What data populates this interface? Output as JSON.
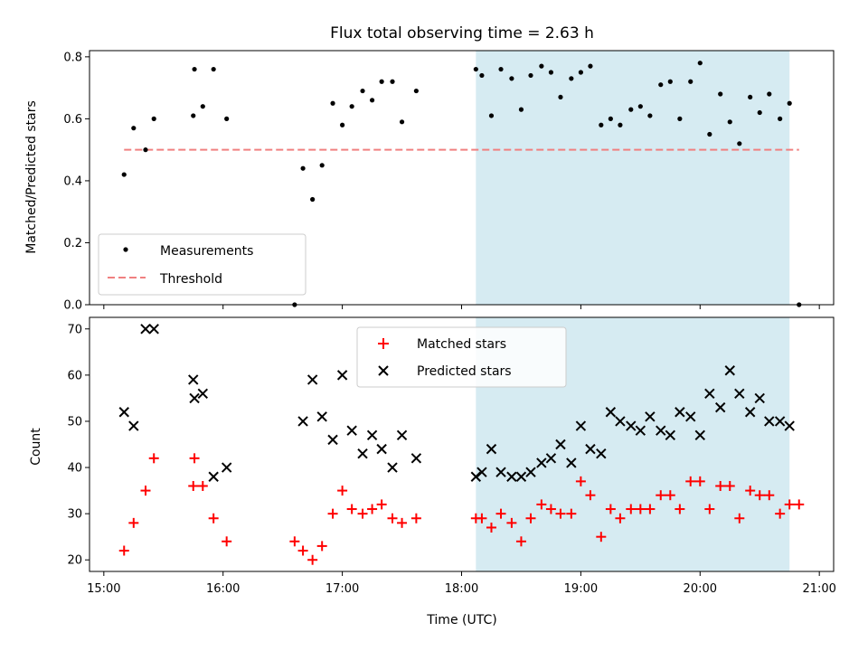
{
  "chart_data": [
    {
      "type": "scatter",
      "title": "Flux total observing time = 2.63 h",
      "xlabel": "",
      "ylabel": "Matched/Predicted stars",
      "xlim": [
        14.88,
        21.12
      ],
      "ylim": [
        0.0,
        0.82
      ],
      "yticks": [
        0.0,
        0.2,
        0.4,
        0.6,
        0.8
      ],
      "ytick_labels": [
        "0.0",
        "0.2",
        "0.4",
        "0.6",
        "0.8"
      ],
      "shaded_span": {
        "from": 18.12,
        "to": 20.75,
        "color": "#add8e6"
      },
      "threshold": {
        "name": "Threshold",
        "value": 0.5,
        "from": 15.17,
        "to": 20.83,
        "color": "#f08080"
      },
      "legend": {
        "placement": "lower-left",
        "entries": [
          "Measurements",
          "Threshold"
        ]
      },
      "series": [
        {
          "name": "Measurements",
          "marker": "dot",
          "color": "#000000",
          "x": [
            15.17,
            15.25,
            15.35,
            15.42,
            15.75,
            15.76,
            15.83,
            15.92,
            16.03,
            16.6,
            16.67,
            16.75,
            16.83,
            16.92,
            17.0,
            17.08,
            17.17,
            17.25,
            17.33,
            17.42,
            17.5,
            17.62,
            18.12,
            18.17,
            18.25,
            18.33,
            18.42,
            18.5,
            18.58,
            18.67,
            18.75,
            18.83,
            18.92,
            19.0,
            19.08,
            19.17,
            19.25,
            19.33,
            19.42,
            19.5,
            19.58,
            19.67,
            19.75,
            19.83,
            19.92,
            20.0,
            20.08,
            20.17,
            20.25,
            20.33,
            20.42,
            20.5,
            20.58,
            20.67,
            20.75,
            20.83
          ],
          "y": [
            0.42,
            0.57,
            0.5,
            0.6,
            0.61,
            0.76,
            0.64,
            0.76,
            0.6,
            0.0,
            0.44,
            0.34,
            0.45,
            0.65,
            0.58,
            0.64,
            0.69,
            0.66,
            0.72,
            0.72,
            0.59,
            0.69,
            0.76,
            0.74,
            0.61,
            0.76,
            0.73,
            0.63,
            0.74,
            0.77,
            0.75,
            0.67,
            0.73,
            0.75,
            0.77,
            0.58,
            0.6,
            0.58,
            0.63,
            0.64,
            0.61,
            0.71,
            0.72,
            0.6,
            0.72,
            0.78,
            0.55,
            0.68,
            0.59,
            0.52,
            0.67,
            0.62,
            0.68,
            0.6,
            0.65,
            0.0
          ]
        }
      ]
    },
    {
      "type": "scatter",
      "title": "",
      "xlabel": "Time (UTC)",
      "ylabel": "Count",
      "xlim": [
        14.88,
        21.12
      ],
      "ylim": [
        17.5,
        72.5
      ],
      "yticks": [
        20,
        30,
        40,
        50,
        60,
        70
      ],
      "ytick_labels": [
        "20",
        "30",
        "40",
        "50",
        "60",
        "70"
      ],
      "xticks": [
        15,
        16,
        17,
        18,
        19,
        20,
        21
      ],
      "xtick_labels": [
        "15:00",
        "16:00",
        "17:00",
        "18:00",
        "19:00",
        "20:00",
        "21:00"
      ],
      "shaded_span": {
        "from": 18.12,
        "to": 20.75,
        "color": "#add8e6"
      },
      "legend": {
        "placement": "upper-center",
        "entries": [
          "Matched stars",
          "Predicted stars"
        ]
      },
      "series": [
        {
          "name": "Matched stars",
          "marker": "plus",
          "color": "#ff0000",
          "x": [
            15.17,
            15.25,
            15.35,
            15.42,
            15.75,
            15.76,
            15.83,
            15.92,
            16.03,
            16.6,
            16.67,
            16.75,
            16.83,
            16.92,
            17.0,
            17.08,
            17.17,
            17.25,
            17.33,
            17.42,
            17.5,
            17.62,
            18.12,
            18.17,
            18.25,
            18.33,
            18.42,
            18.5,
            18.58,
            18.67,
            18.75,
            18.83,
            18.92,
            19.0,
            19.08,
            19.17,
            19.25,
            19.33,
            19.42,
            19.5,
            19.58,
            19.67,
            19.75,
            19.83,
            19.92,
            20.0,
            20.08,
            20.17,
            20.25,
            20.33,
            20.42,
            20.5,
            20.58,
            20.67,
            20.75,
            20.83
          ],
          "y": [
            22,
            28,
            35,
            42,
            36,
            42,
            36,
            29,
            24,
            24,
            22,
            20,
            23,
            30,
            35,
            31,
            30,
            31,
            32,
            29,
            28,
            29,
            29,
            29,
            27,
            30,
            28,
            24,
            29,
            32,
            31,
            30,
            30,
            37,
            34,
            25,
            31,
            29,
            31,
            31,
            31,
            34,
            34,
            31,
            37,
            37,
            31,
            36,
            36,
            29,
            35,
            34,
            34,
            30,
            32,
            32
          ]
        },
        {
          "name": "Predicted stars",
          "marker": "x",
          "color": "#000000",
          "x": [
            15.17,
            15.25,
            15.35,
            15.42,
            15.75,
            15.76,
            15.83,
            15.92,
            16.03,
            16.67,
            16.75,
            16.83,
            16.92,
            17.0,
            17.08,
            17.17,
            17.25,
            17.33,
            17.42,
            17.5,
            17.62,
            18.12,
            18.17,
            18.25,
            18.33,
            18.42,
            18.5,
            18.58,
            18.67,
            18.75,
            18.83,
            18.92,
            19.0,
            19.08,
            19.17,
            19.25,
            19.33,
            19.42,
            19.5,
            19.58,
            19.67,
            19.75,
            19.83,
            19.92,
            20.0,
            20.08,
            20.17,
            20.25,
            20.33,
            20.42,
            20.5,
            20.58,
            20.67,
            20.75
          ],
          "y": [
            52,
            49,
            70,
            70,
            59,
            55,
            56,
            38,
            40,
            50,
            59,
            51,
            46,
            60,
            48,
            43,
            47,
            44,
            40,
            47,
            42,
            38,
            39,
            44,
            39,
            38,
            38,
            39,
            41,
            42,
            45,
            41,
            49,
            44,
            43,
            52,
            50,
            49,
            48,
            51,
            48,
            47,
            52,
            51,
            47,
            56,
            53,
            61,
            56,
            52,
            55,
            50,
            50,
            49
          ]
        }
      ]
    }
  ]
}
